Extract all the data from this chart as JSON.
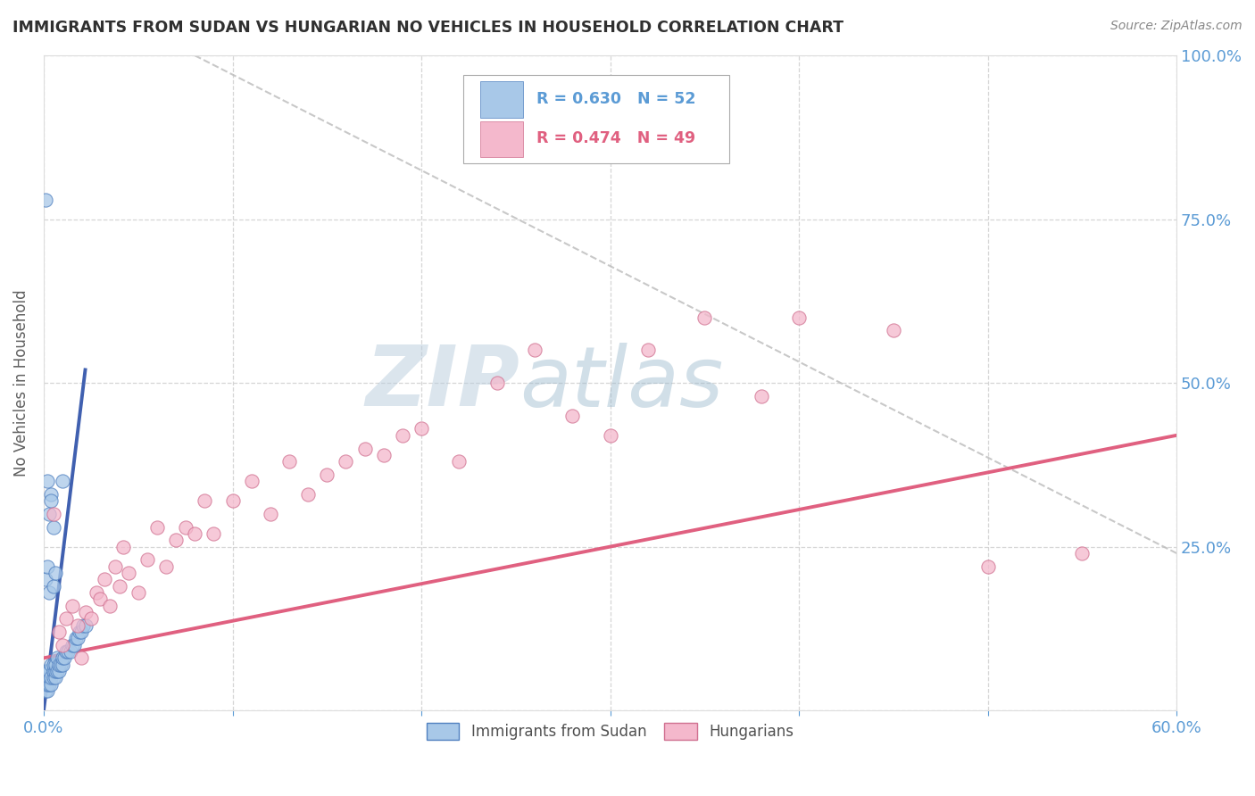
{
  "title": "IMMIGRANTS FROM SUDAN VS HUNGARIAN NO VEHICLES IN HOUSEHOLD CORRELATION CHART",
  "source_text": "Source: ZipAtlas.com",
  "ylabel": "No Vehicles in Household",
  "xlim": [
    0.0,
    0.6
  ],
  "ylim": [
    0.0,
    1.0
  ],
  "xticks": [
    0.0,
    0.1,
    0.2,
    0.3,
    0.4,
    0.5,
    0.6
  ],
  "xticklabels": [
    "0.0%",
    "",
    "",
    "",
    "",
    "",
    "60.0%"
  ],
  "yticks": [
    0.0,
    0.25,
    0.5,
    0.75,
    1.0
  ],
  "yticklabels_right": [
    "",
    "25.0%",
    "50.0%",
    "75.0%",
    "100.0%"
  ],
  "legend_r1": "R = 0.630",
  "legend_n1": "N = 52",
  "legend_r2": "R = 0.474",
  "legend_n2": "N = 49",
  "color_blue_fill": "#a8c8e8",
  "color_blue_edge": "#5080c0",
  "color_pink_fill": "#f4b8cc",
  "color_pink_edge": "#d07090",
  "color_blue_line": "#4060b0",
  "color_pink_line": "#e06080",
  "color_title": "#303030",
  "color_axis_label": "#5b9bd5",
  "color_gridline": "#cccccc",
  "watermark_zip": "ZIP",
  "watermark_atlas": "atlas",
  "blue_trendline_x": [
    0.0,
    0.022
  ],
  "blue_trendline_y": [
    0.0,
    0.52
  ],
  "pink_trendline_x": [
    0.0,
    0.6
  ],
  "pink_trendline_y": [
    0.08,
    0.42
  ],
  "ref_line_x": [
    0.08,
    0.6
  ],
  "ref_line_y": [
    1.0,
    0.24
  ],
  "sudan_x": [
    0.0,
    0.001,
    0.001,
    0.001,
    0.001,
    0.002,
    0.002,
    0.002,
    0.002,
    0.003,
    0.003,
    0.003,
    0.004,
    0.004,
    0.004,
    0.005,
    0.005,
    0.005,
    0.006,
    0.006,
    0.006,
    0.007,
    0.007,
    0.008,
    0.008,
    0.009,
    0.01,
    0.01,
    0.011,
    0.012,
    0.013,
    0.014,
    0.015,
    0.016,
    0.017,
    0.018,
    0.019,
    0.02,
    0.021,
    0.022,
    0.001,
    0.002,
    0.003,
    0.004,
    0.005,
    0.006,
    0.001,
    0.002,
    0.003,
    0.004,
    0.005,
    0.01
  ],
  "sudan_y": [
    0.04,
    0.03,
    0.04,
    0.05,
    0.06,
    0.03,
    0.04,
    0.05,
    0.06,
    0.04,
    0.05,
    0.06,
    0.04,
    0.05,
    0.07,
    0.05,
    0.06,
    0.07,
    0.05,
    0.06,
    0.07,
    0.06,
    0.08,
    0.06,
    0.07,
    0.07,
    0.07,
    0.08,
    0.08,
    0.09,
    0.09,
    0.09,
    0.1,
    0.1,
    0.11,
    0.11,
    0.12,
    0.12,
    0.13,
    0.13,
    0.2,
    0.22,
    0.18,
    0.33,
    0.19,
    0.21,
    0.78,
    0.35,
    0.3,
    0.32,
    0.28,
    0.35
  ],
  "hungarian_x": [
    0.005,
    0.008,
    0.01,
    0.012,
    0.015,
    0.018,
    0.02,
    0.022,
    0.025,
    0.028,
    0.03,
    0.032,
    0.035,
    0.038,
    0.04,
    0.042,
    0.045,
    0.05,
    0.055,
    0.06,
    0.065,
    0.07,
    0.075,
    0.08,
    0.085,
    0.09,
    0.1,
    0.11,
    0.12,
    0.13,
    0.14,
    0.15,
    0.16,
    0.17,
    0.18,
    0.19,
    0.2,
    0.22,
    0.24,
    0.26,
    0.28,
    0.3,
    0.32,
    0.35,
    0.38,
    0.4,
    0.45,
    0.5,
    0.55
  ],
  "hungarian_y": [
    0.3,
    0.12,
    0.1,
    0.14,
    0.16,
    0.13,
    0.08,
    0.15,
    0.14,
    0.18,
    0.17,
    0.2,
    0.16,
    0.22,
    0.19,
    0.25,
    0.21,
    0.18,
    0.23,
    0.28,
    0.22,
    0.26,
    0.28,
    0.27,
    0.32,
    0.27,
    0.32,
    0.35,
    0.3,
    0.38,
    0.33,
    0.36,
    0.38,
    0.4,
    0.39,
    0.42,
    0.43,
    0.38,
    0.5,
    0.55,
    0.45,
    0.42,
    0.55,
    0.6,
    0.48,
    0.6,
    0.58,
    0.22,
    0.24
  ]
}
